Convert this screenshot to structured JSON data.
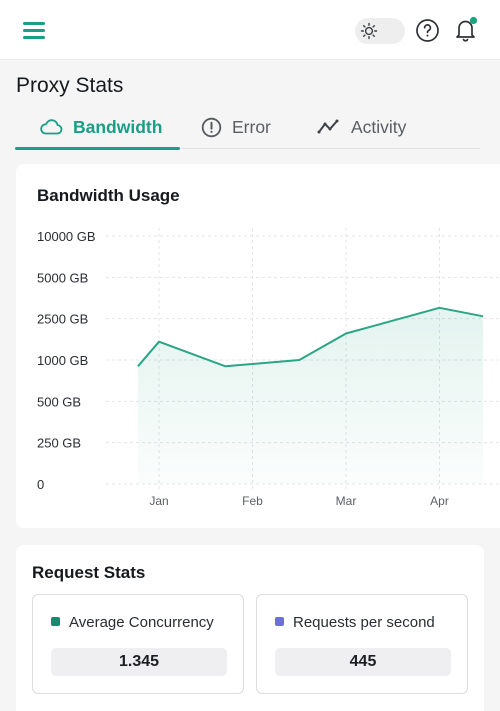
{
  "header": {
    "menu_icon": "hamburger-menu-icon",
    "theme_icon": "sun-icon",
    "help_icon": "help-circle-icon",
    "notification_icon": "bell-icon",
    "accent_color": "#1a9e85"
  },
  "page": {
    "title": "Proxy Stats"
  },
  "tabs": [
    {
      "label": "Bandwidth",
      "icon": "cloud-icon",
      "active": true
    },
    {
      "label": "Error",
      "icon": "alert-circle-icon",
      "active": false
    },
    {
      "label": "Activity",
      "icon": "activity-icon",
      "active": false
    }
  ],
  "bandwidth_card": {
    "title": "Bandwidth Usage"
  },
  "chart_data": {
    "type": "area",
    "title": "Bandwidth Usage",
    "xlabel": "",
    "ylabel": "",
    "y_ticks": [
      "10000 GB",
      "5000 GB",
      "2500 GB",
      "1000 GB",
      "500 GB",
      "250 GB",
      "0"
    ],
    "x_ticks": [
      "Jan",
      "Feb",
      "Mar",
      "Apr"
    ],
    "grid": true,
    "series": [
      {
        "color": "#2aa585",
        "points": [
          {
            "x": "Dec 25",
            "y": 900
          },
          {
            "x": "Jan",
            "y": 1500
          },
          {
            "x": "Jan 23",
            "y": 900
          },
          {
            "x": "Feb 15",
            "y": 1000
          },
          {
            "x": "Mar",
            "y": 1800
          },
          {
            "x": "Apr",
            "y": 3000
          },
          {
            "x": "Apr 15",
            "y": 2600
          }
        ]
      }
    ]
  },
  "request_stats": {
    "title": "Request Stats",
    "items": [
      {
        "label": "Average Concurrency",
        "value": "1.345",
        "color": "#1a8a6e"
      },
      {
        "label": "Requests per second",
        "value": "445",
        "color": "#6b6fd6"
      }
    ]
  }
}
